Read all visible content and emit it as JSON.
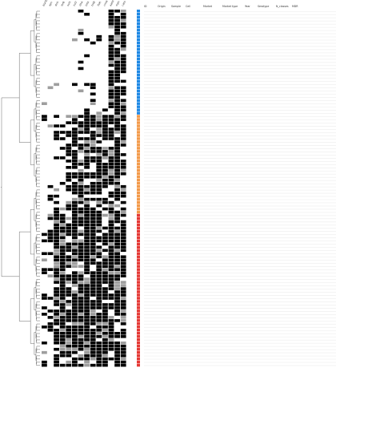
{
  "figure": {
    "gene_columns": [
      "blaTEM",
      "aph",
      "strA",
      "strB",
      "sul1",
      "sul2",
      "dfrA",
      "tetA",
      "tetB",
      "floR",
      "cmlA",
      "aadA",
      "mph",
      "catA"
    ],
    "table_headers": [
      "ID",
      "Origin",
      "Sample",
      "Cell",
      "Market",
      "Market type",
      "Year",
      "Serotype",
      "N_classes",
      "MDR"
    ],
    "colors": {
      "cluster_blue": "#1e88e5",
      "cluster_orange": "#f39a4a",
      "cluster_red": "#e53935",
      "present": "#000000",
      "partial": "#9e9e9e"
    },
    "groups": [
      {
        "name": "blue",
        "count": 33
      },
      {
        "name": "orange",
        "count": 31
      },
      {
        "name": "red",
        "count": 48
      }
    ],
    "rows": []
  }
}
